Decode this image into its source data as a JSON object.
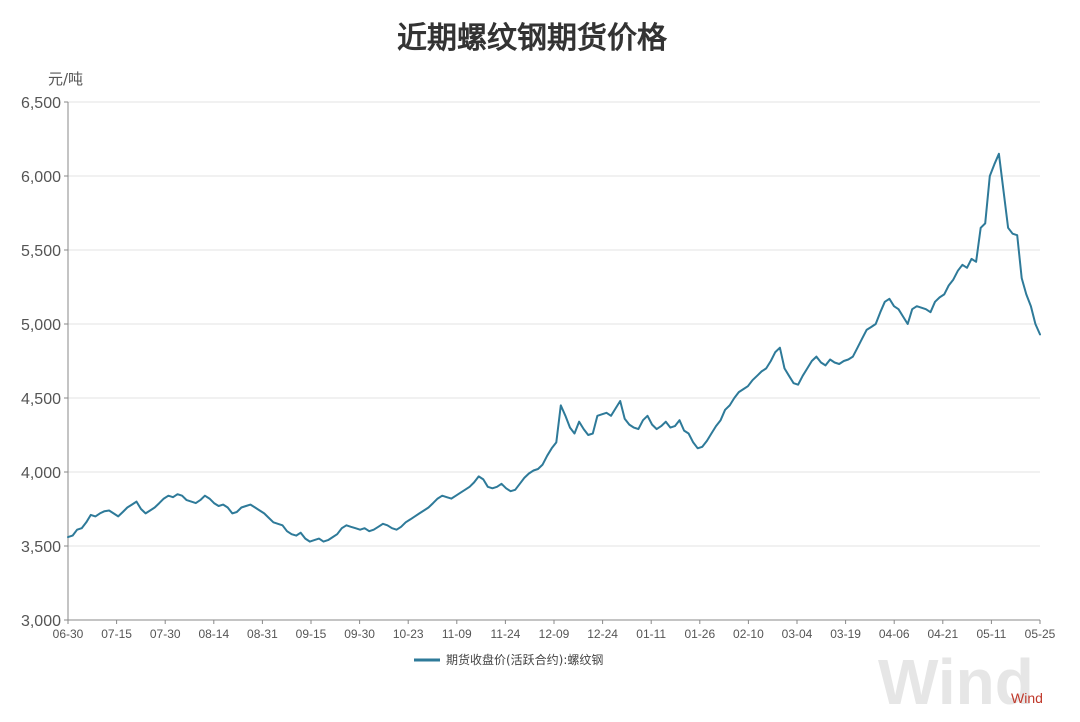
{
  "chart_data": {
    "type": "line",
    "title": "近期螺纹钢期货价格",
    "ylabel": "元/吨",
    "ylim": [
      3000,
      6500
    ],
    "yticks": [
      "3,000",
      "3,500",
      "4,000",
      "4,500",
      "5,000",
      "5,500",
      "6,000",
      "6,500"
    ],
    "ytick_values": [
      3000,
      3500,
      4000,
      4500,
      5000,
      5500,
      6000,
      6500
    ],
    "xticks": [
      "06-30",
      "07-15",
      "07-30",
      "08-14",
      "08-31",
      "09-15",
      "09-30",
      "10-23",
      "11-09",
      "11-24",
      "12-09",
      "12-24",
      "01-11",
      "01-26",
      "02-10",
      "03-04",
      "03-19",
      "04-06",
      "04-21",
      "05-11",
      "05-25"
    ],
    "grid": true,
    "legend_position": "bottom-center",
    "series": [
      {
        "name": "期货收盘价(活跃合约):螺纹钢",
        "color": "#2e7a99",
        "values": [
          3560,
          3570,
          3610,
          3620,
          3660,
          3710,
          3700,
          3720,
          3735,
          3740,
          3720,
          3700,
          3730,
          3760,
          3780,
          3800,
          3750,
          3720,
          3740,
          3760,
          3790,
          3820,
          3840,
          3830,
          3850,
          3840,
          3810,
          3800,
          3790,
          3810,
          3840,
          3820,
          3790,
          3770,
          3780,
          3760,
          3720,
          3730,
          3760,
          3770,
          3780,
          3760,
          3740,
          3720,
          3690,
          3660,
          3650,
          3640,
          3600,
          3580,
          3570,
          3590,
          3550,
          3530,
          3540,
          3550,
          3530,
          3540,
          3560,
          3580,
          3620,
          3640,
          3630,
          3620,
          3610,
          3620,
          3600,
          3610,
          3630,
          3650,
          3640,
          3620,
          3610,
          3630,
          3660,
          3680,
          3700,
          3720,
          3740,
          3760,
          3790,
          3820,
          3840,
          3830,
          3820,
          3840,
          3860,
          3880,
          3900,
          3930,
          3970,
          3950,
          3900,
          3890,
          3900,
          3920,
          3890,
          3870,
          3880,
          3920,
          3960,
          3990,
          4010,
          4020,
          4050,
          4110,
          4160,
          4200,
          4450,
          4380,
          4300,
          4260,
          4340,
          4290,
          4250,
          4260,
          4380,
          4390,
          4400,
          4380,
          4430,
          4480,
          4360,
          4320,
          4300,
          4290,
          4350,
          4380,
          4320,
          4290,
          4310,
          4340,
          4300,
          4310,
          4350,
          4280,
          4260,
          4200,
          4160,
          4170,
          4210,
          4260,
          4310,
          4350,
          4420,
          4450,
          4500,
          4540,
          4560,
          4580,
          4620,
          4650,
          4680,
          4700,
          4750,
          4810,
          4840,
          4700,
          4650,
          4600,
          4590,
          4650,
          4700,
          4750,
          4780,
          4740,
          4720,
          4760,
          4740,
          4730,
          4750,
          4760,
          4780,
          4840,
          4900,
          4960,
          4980,
          5000,
          5080,
          5150,
          5170,
          5120,
          5100,
          5050,
          5000,
          5100,
          5120,
          5110,
          5100,
          5080,
          5150,
          5180,
          5200,
          5260,
          5300,
          5360,
          5400,
          5380,
          5440,
          5420,
          5650,
          5680,
          6000,
          6080,
          6150,
          5900,
          5650,
          5610,
          5600,
          5310,
          5200,
          5120,
          5000,
          4930
        ]
      }
    ]
  },
  "watermark": {
    "text": "Wind",
    "small_text": "Wind"
  }
}
